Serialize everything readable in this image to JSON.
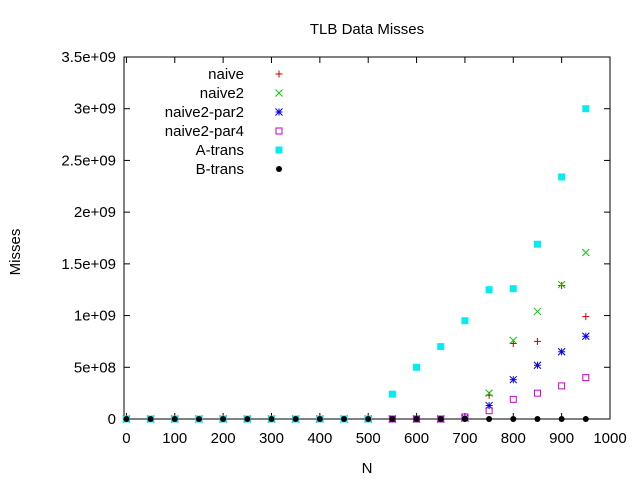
{
  "chart_data": {
    "type": "scatter",
    "title": "TLB Data Misses",
    "xlabel": "N",
    "ylabel": "Misses",
    "xlim": [
      -5,
      1000
    ],
    "ylim": [
      0,
      3500000000
    ],
    "xticks": [
      0,
      100,
      200,
      300,
      400,
      500,
      600,
      700,
      800,
      900,
      1000
    ],
    "xtick_labels": [
      "0",
      "100",
      "200",
      "300",
      "400",
      "500",
      "600",
      "700",
      "800",
      "900",
      "1000"
    ],
    "yticks": [
      0,
      500000000,
      1000000000,
      1500000000,
      2000000000,
      2500000000,
      3000000000,
      3500000000
    ],
    "ytick_labels": [
      "0",
      "5e+08",
      "1e+09",
      "1.5e+09",
      "2e+09",
      "2.5e+09",
      "3e+09",
      "3.5e+09"
    ],
    "grid": false,
    "legend_position": "top-left",
    "x": [
      0,
      50,
      100,
      150,
      200,
      250,
      300,
      350,
      400,
      450,
      500,
      550,
      600,
      650,
      700,
      750,
      800,
      850,
      900,
      950
    ],
    "series": [
      {
        "name": "naive",
        "color": "#cc0000",
        "marker": "plus",
        "values": [
          0,
          0,
          0,
          0,
          0,
          0,
          0,
          0,
          0,
          0,
          0,
          0,
          0,
          0,
          10000000,
          230000000,
          730000000,
          750000000,
          1290000000,
          990000000
        ]
      },
      {
        "name": "naive2",
        "color": "#00cc00",
        "marker": "cross",
        "values": [
          0,
          0,
          0,
          0,
          0,
          0,
          0,
          0,
          0,
          0,
          0,
          0,
          0,
          0,
          10000000,
          250000000,
          760000000,
          1040000000,
          1300000000,
          1610000000
        ]
      },
      {
        "name": "naive2-par2",
        "color": "#0000ee",
        "marker": "star",
        "values": [
          0,
          0,
          0,
          0,
          0,
          0,
          0,
          0,
          0,
          0,
          0,
          0,
          0,
          0,
          10000000,
          130000000,
          380000000,
          520000000,
          650000000,
          800000000
        ]
      },
      {
        "name": "naive2-par4",
        "color": "#cc00cc",
        "marker": "open-square",
        "values": [
          0,
          0,
          0,
          0,
          0,
          0,
          0,
          0,
          0,
          0,
          0,
          0,
          0,
          0,
          20000000,
          80000000,
          190000000,
          250000000,
          320000000,
          400000000
        ]
      },
      {
        "name": "A-trans",
        "color": "#00eeee",
        "marker": "filled-square",
        "values": [
          0,
          0,
          0,
          0,
          0,
          0,
          0,
          0,
          0,
          0,
          0,
          240000000,
          500000000,
          700000000,
          950000000,
          1250000000,
          1260000000,
          1690000000,
          2340000000,
          3000000000
        ]
      },
      {
        "name": "B-trans",
        "color": "#000000",
        "marker": "filled-circle",
        "values": [
          0,
          0,
          0,
          0,
          0,
          0,
          0,
          0,
          0,
          0,
          0,
          0,
          0,
          0,
          0,
          0,
          0,
          0,
          0,
          0
        ]
      }
    ]
  }
}
